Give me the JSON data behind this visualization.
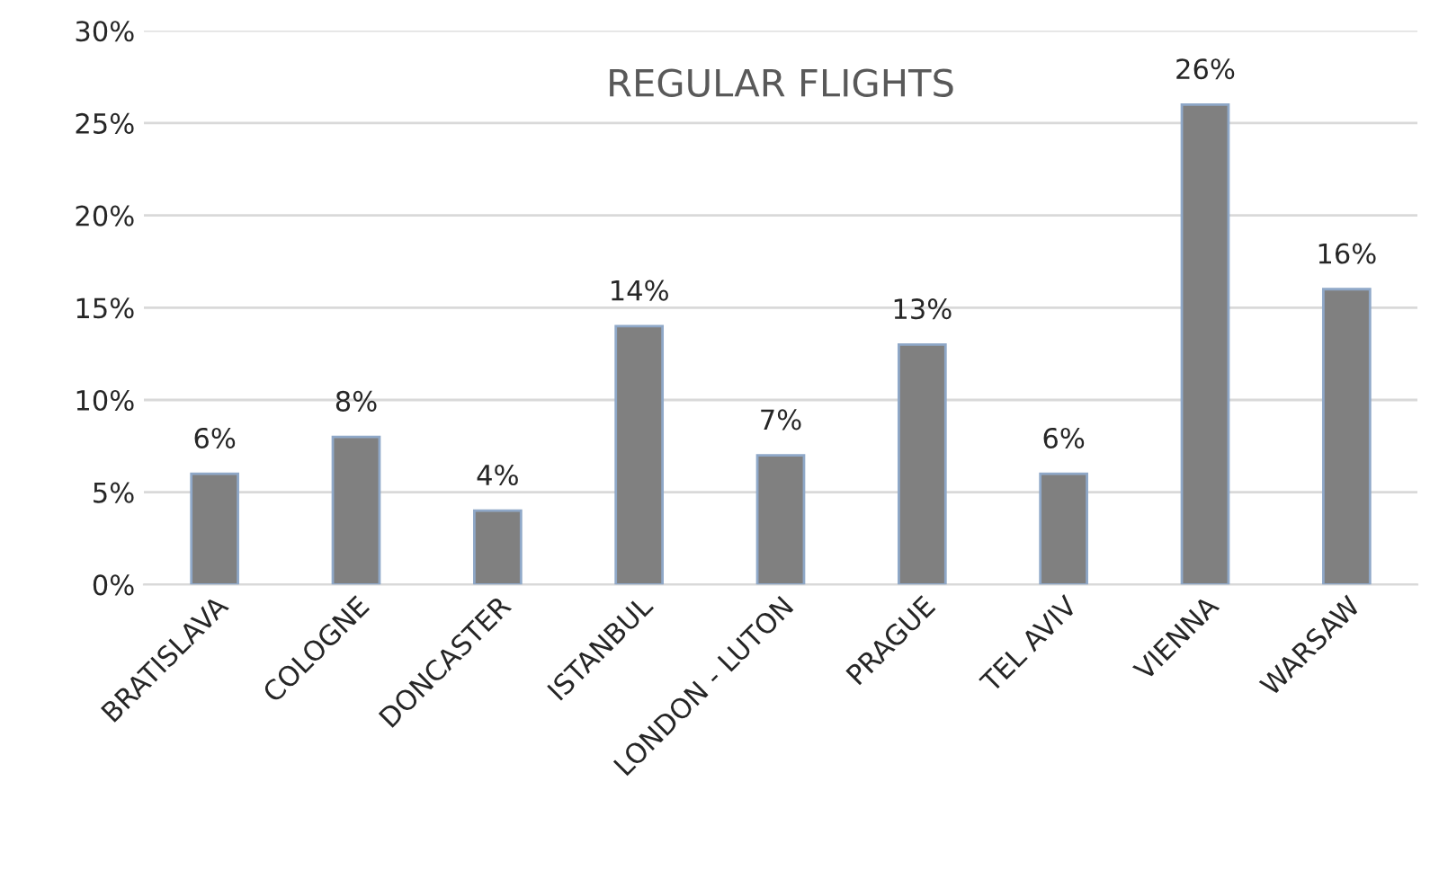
{
  "chart_data": {
    "type": "bar",
    "title": "REGULAR FLIGHTS",
    "categories": [
      "BRATISLAVA",
      "COLOGNE",
      "DONCASTER",
      "ISTANBUL",
      "LONDON - LUTON",
      "PRAGUE",
      "TEL AVIV",
      "VIENNA",
      "WARSAW"
    ],
    "values": [
      6,
      8,
      4,
      14,
      7,
      13,
      6,
      26,
      16
    ],
    "value_labels": [
      "6%",
      "8%",
      "4%",
      "14%",
      "7%",
      "13%",
      "6%",
      "26%",
      "16%"
    ],
    "color": "#808080",
    "ylim": [
      0,
      30
    ],
    "yticks": [
      {
        "value": 0,
        "label": "0%"
      },
      {
        "value": 5,
        "label": "5%"
      },
      {
        "value": 10,
        "label": "10%"
      },
      {
        "value": 15,
        "label": "15%"
      },
      {
        "value": 20,
        "label": "20%"
      },
      {
        "value": 25,
        "label": "25%"
      },
      {
        "value": 30,
        "label": "30%"
      }
    ],
    "grid": "y",
    "legend": false
  }
}
